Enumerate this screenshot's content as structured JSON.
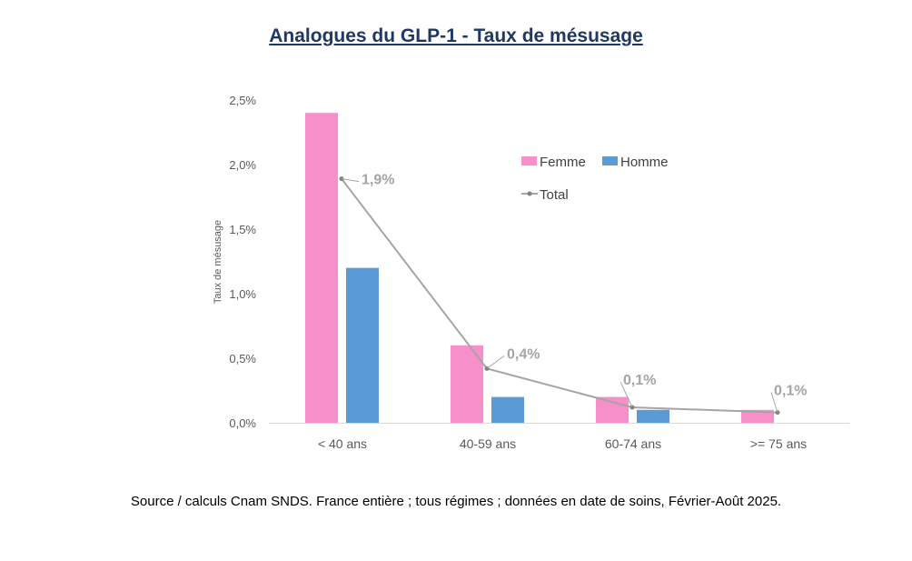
{
  "title": "Analogues du GLP-1 - Taux de mésusage",
  "source": "Source / calculs Cnam SNDS. France entière ; tous régimes ; données en date de soins, Février-Août 2025.",
  "chart_data": {
    "type": "bar",
    "title": "Analogues du GLP-1 - Taux de mésusage",
    "xlabel": "",
    "ylabel": "Taux de mésusage",
    "ylim": [
      0,
      2.5
    ],
    "yticks": [
      0,
      0.5,
      1.0,
      1.5,
      2.0,
      2.5
    ],
    "ytick_labels": [
      "0,0%",
      "0,5%",
      "1,0%",
      "1,5%",
      "2,0%",
      "2,5%"
    ],
    "categories": [
      "< 40 ans",
      "40-59 ans",
      "60-74 ans",
      ">= 75 ans"
    ],
    "series": [
      {
        "name": "Femme",
        "type": "bar",
        "color": "#F78FCB",
        "values": [
          2.4,
          0.6,
          0.2,
          0.1
        ]
      },
      {
        "name": "Homme",
        "type": "bar",
        "color": "#5B9BD5",
        "values": [
          1.2,
          0.2,
          0.1,
          0.0
        ]
      },
      {
        "name": "Total",
        "type": "line",
        "color": "#A5A5A5",
        "values": [
          1.89,
          0.42,
          0.12,
          0.08
        ],
        "labels": [
          "1,9%",
          "0,4%",
          "0,1%",
          "0,1%"
        ]
      }
    ],
    "legend_position": "top-right",
    "grid": false
  }
}
